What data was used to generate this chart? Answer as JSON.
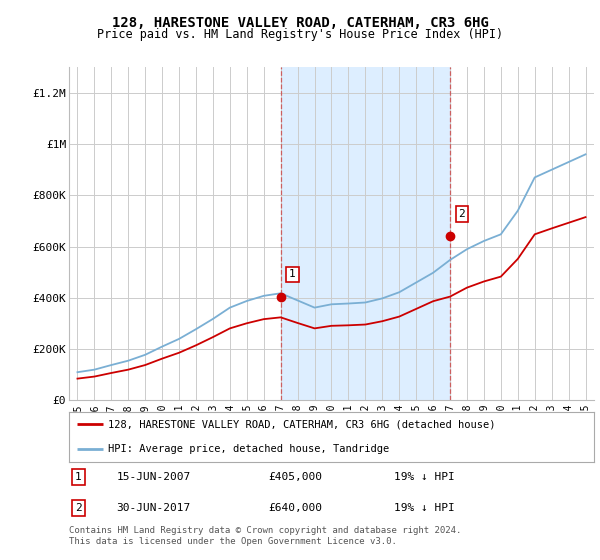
{
  "title": "128, HARESTONE VALLEY ROAD, CATERHAM, CR3 6HG",
  "subtitle": "Price paid vs. HM Land Registry's House Price Index (HPI)",
  "background_color": "#ffffff",
  "grid_color": "#cccccc",
  "shade_color": "#ddeeff",
  "red_line_color": "#cc0000",
  "blue_line_color": "#7aafd4",
  "legend_label_red": "128, HARESTONE VALLEY ROAD, CATERHAM, CR3 6HG (detached house)",
  "legend_label_blue": "HPI: Average price, detached house, Tandridge",
  "annotation1": [
    "1",
    "15-JUN-2007",
    "£405,000",
    "19% ↓ HPI"
  ],
  "annotation2": [
    "2",
    "30-JUN-2017",
    "£640,000",
    "19% ↓ HPI"
  ],
  "footer": "Contains HM Land Registry data © Crown copyright and database right 2024.\nThis data is licensed under the Open Government Licence v3.0.",
  "ylim": [
    0,
    1300000
  ],
  "yticks": [
    0,
    200000,
    400000,
    600000,
    800000,
    1000000,
    1200000
  ],
  "ytick_labels": [
    "£0",
    "£200K",
    "£400K",
    "£600K",
    "£800K",
    "£1M",
    "£1.2M"
  ],
  "years": [
    1995,
    1996,
    1997,
    1998,
    1999,
    2000,
    2001,
    2002,
    2003,
    2004,
    2005,
    2006,
    2007,
    2008,
    2009,
    2010,
    2011,
    2012,
    2013,
    2014,
    2015,
    2016,
    2017,
    2018,
    2019,
    2020,
    2021,
    2022,
    2023,
    2024,
    2025
  ],
  "hpi_values": [
    110000,
    120000,
    138000,
    155000,
    178000,
    210000,
    240000,
    278000,
    318000,
    362000,
    388000,
    408000,
    418000,
    390000,
    362000,
    375000,
    378000,
    382000,
    398000,
    422000,
    460000,
    498000,
    548000,
    590000,
    622000,
    648000,
    740000,
    870000,
    900000,
    930000,
    960000
  ],
  "red_hpi_values": [
    85000,
    93000,
    107000,
    120000,
    138000,
    163000,
    186000,
    215000,
    247000,
    281000,
    301000,
    317000,
    324000,
    302000,
    281000,
    291000,
    293000,
    296000,
    309000,
    327000,
    357000,
    387000,
    405000,
    440000,
    464000,
    483000,
    552000,
    648000,
    671000,
    693000,
    715000
  ],
  "marker1_year": 2007,
  "marker1_value": 405000,
  "marker2_year": 2017,
  "marker2_value": 640000,
  "sale1_year": 2007,
  "sale1_value": 405000,
  "sale2_year": 2017,
  "sale2_value": 640000
}
